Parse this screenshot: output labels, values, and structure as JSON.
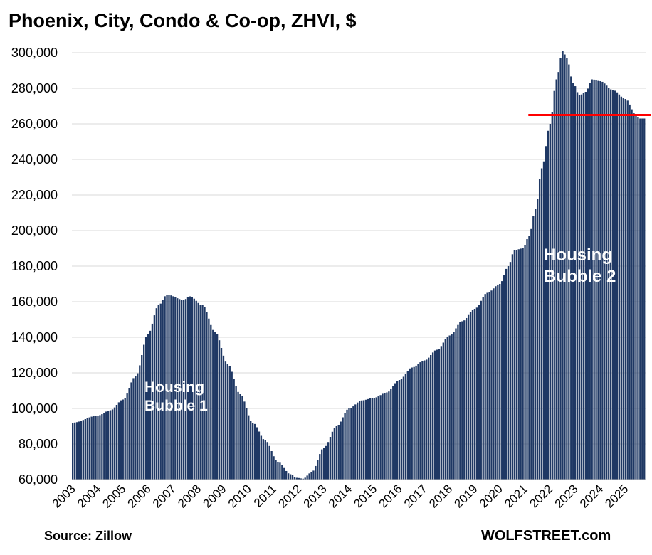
{
  "chart_data": {
    "type": "bar",
    "title": "Phoenix, City, Condo & Co-op, ZHVI, $",
    "xlabel": "",
    "ylabel": "",
    "ylim": [
      60000,
      300000
    ],
    "yticks": [
      "60,000",
      "80,000",
      "100,000",
      "120,000",
      "140,000",
      "160,000",
      "180,000",
      "200,000",
      "220,000",
      "240,000",
      "260,000",
      "280,000",
      "300,000"
    ],
    "categories": [
      "2003",
      "2004",
      "2005",
      "2006",
      "2007",
      "2008",
      "2009",
      "2010",
      "2011",
      "2012",
      "2013",
      "2014",
      "2015",
      "2016",
      "2017",
      "2018",
      "2019",
      "2020",
      "2021",
      "2022",
      "2023",
      "2024",
      "2025"
    ],
    "frequency": "monthly",
    "grid": true,
    "bar_color": "#1f3864",
    "reference_line": {
      "value": 265000,
      "start": "2021-03",
      "color": "#ff0000"
    },
    "anchors": [
      [
        "2003-01",
        92000
      ],
      [
        "2004-01",
        96000
      ],
      [
        "2004-07",
        99000
      ],
      [
        "2005-01",
        105000
      ],
      [
        "2005-07",
        118000
      ],
      [
        "2006-01",
        142000
      ],
      [
        "2006-06",
        158000
      ],
      [
        "2006-10",
        164000
      ],
      [
        "2007-06",
        161000
      ],
      [
        "2007-09",
        163000
      ],
      [
        "2008-03",
        158000
      ],
      [
        "2008-09",
        143000
      ],
      [
        "2009-03",
        125000
      ],
      [
        "2009-09",
        108000
      ],
      [
        "2010-03",
        92000
      ],
      [
        "2010-09",
        82000
      ],
      [
        "2011-03",
        70000
      ],
      [
        "2011-09",
        63000
      ],
      [
        "2011-12",
        61000
      ],
      [
        "2012-03",
        60500
      ],
      [
        "2012-07",
        64000
      ],
      [
        "2013-01",
        78000
      ],
      [
        "2013-07",
        90000
      ],
      [
        "2014-01",
        100000
      ],
      [
        "2014-07",
        104500
      ],
      [
        "2015-01",
        106000
      ],
      [
        "2015-07",
        109000
      ],
      [
        "2016-01",
        116000
      ],
      [
        "2016-07",
        123000
      ],
      [
        "2017-01",
        127000
      ],
      [
        "2017-07",
        133000
      ],
      [
        "2018-01",
        141000
      ],
      [
        "2018-07",
        149000
      ],
      [
        "2019-01",
        156000
      ],
      [
        "2019-07",
        165000
      ],
      [
        "2020-01",
        170000
      ],
      [
        "2020-05",
        180000
      ],
      [
        "2020-08",
        189000
      ],
      [
        "2020-12",
        190000
      ],
      [
        "2021-03",
        197000
      ],
      [
        "2021-06",
        212000
      ],
      [
        "2021-09",
        235000
      ],
      [
        "2022-01",
        260000
      ],
      [
        "2022-04",
        285000
      ],
      [
        "2022-07",
        301000
      ],
      [
        "2022-09",
        297000
      ],
      [
        "2022-12",
        283000
      ],
      [
        "2023-03",
        276000
      ],
      [
        "2023-06",
        278000
      ],
      [
        "2023-09",
        285000
      ],
      [
        "2024-01",
        284000
      ],
      [
        "2024-07",
        279000
      ],
      [
        "2025-01",
        274000
      ],
      [
        "2025-06",
        265000
      ],
      [
        "2025-08",
        263000
      ]
    ],
    "annotations": [
      {
        "lines": [
          "Housing",
          "Bubble 1"
        ]
      },
      {
        "lines": [
          "Housing",
          "Bubble 2"
        ]
      }
    ]
  },
  "footer": {
    "source": "Source: Zillow",
    "brand": "WOLFSTREET.com"
  }
}
